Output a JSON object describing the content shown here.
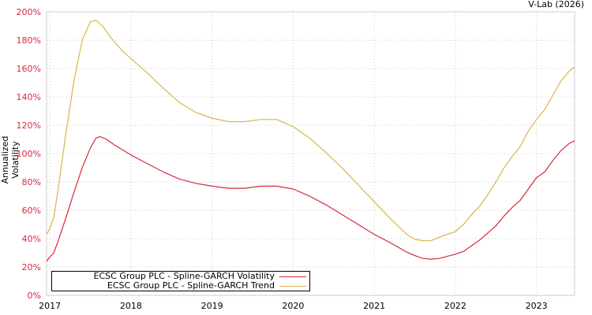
{
  "header": {
    "credit": "V-Lab (2026)"
  },
  "legend": {
    "items": [
      {
        "label": "ECSC Group PLC - Spline-GARCH Volatility",
        "color": "#d6293e"
      },
      {
        "label": "ECSC Group PLC - Spline-GARCH Trend",
        "color": "#d9b54a"
      }
    ]
  },
  "chart_data": {
    "type": "line",
    "title": "",
    "xlabel": "",
    "ylabel": "Annualized Volatility",
    "x_tick_labels": [
      "2017",
      "2018",
      "2019",
      "2020",
      "2021",
      "2022",
      "2023"
    ],
    "y_tick_labels": [
      "0%",
      "20%",
      "40%",
      "60%",
      "80%",
      "100%",
      "120%",
      "140%",
      "160%",
      "180%",
      "200%"
    ],
    "ylim": [
      0,
      200
    ],
    "xlim": [
      2016.96,
      2023.47
    ],
    "grid": true,
    "legend_position": "bottom-left",
    "series": [
      {
        "name": "ECSC Group PLC - Spline-GARCH Volatility",
        "color": "#d6293e",
        "x": [
          2016.96,
          2017.0,
          2017.05,
          2017.1,
          2017.2,
          2017.3,
          2017.4,
          2017.5,
          2017.57,
          2017.62,
          2017.7,
          2017.8,
          2018.0,
          2018.2,
          2018.4,
          2018.6,
          2018.8,
          2019.0,
          2019.2,
          2019.4,
          2019.6,
          2019.8,
          2020.0,
          2020.2,
          2020.4,
          2020.6,
          2020.8,
          2021.0,
          2021.2,
          2021.4,
          2021.5,
          2021.6,
          2021.7,
          2021.8,
          2022.0,
          2022.1,
          2022.2,
          2022.3,
          2022.4,
          2022.5,
          2022.6,
          2022.7,
          2022.8,
          2022.9,
          2023.0,
          2023.1,
          2023.2,
          2023.3,
          2023.4,
          2023.47
        ],
        "values": [
          24,
          27,
          30,
          38,
          55,
          73,
          90,
          104,
          111,
          112,
          110,
          106,
          99,
          93,
          87,
          82,
          79,
          77,
          75.5,
          75.5,
          77,
          77,
          75,
          70,
          64,
          57,
          50,
          43,
          37,
          30.5,
          28,
          26,
          25.5,
          26,
          29,
          31,
          35,
          39,
          44,
          49,
          56,
          62,
          67,
          75,
          83,
          87,
          95,
          102,
          107,
          109
        ]
      },
      {
        "name": "ECSC Group PLC - Spline-GARCH Trend",
        "color": "#d9b54a",
        "x": [
          2016.96,
          2017.0,
          2017.05,
          2017.1,
          2017.2,
          2017.3,
          2017.4,
          2017.5,
          2017.57,
          2017.65,
          2017.75,
          2017.9,
          2018.0,
          2018.2,
          2018.4,
          2018.6,
          2018.8,
          2019.0,
          2019.2,
          2019.4,
          2019.6,
          2019.8,
          2020.0,
          2020.2,
          2020.4,
          2020.6,
          2020.8,
          2021.0,
          2021.2,
          2021.4,
          2021.5,
          2021.6,
          2021.7,
          2021.8,
          2022.0,
          2022.1,
          2022.2,
          2022.3,
          2022.4,
          2022.5,
          2022.6,
          2022.7,
          2022.8,
          2022.9,
          2023.0,
          2023.1,
          2023.2,
          2023.3,
          2023.4,
          2023.47
        ],
        "values": [
          43,
          47,
          55,
          74,
          115,
          152,
          180,
          193,
          194,
          190,
          182,
          172,
          167,
          157,
          146,
          136,
          129,
          125,
          122.5,
          122.5,
          124,
          124,
          119,
          111,
          101,
          90,
          78,
          66,
          54,
          43,
          39.5,
          38.5,
          38.5,
          41,
          45,
          50,
          57,
          63,
          71,
          80,
          90,
          98,
          105,
          116,
          124,
          131,
          141,
          151,
          158,
          161
        ]
      }
    ]
  }
}
